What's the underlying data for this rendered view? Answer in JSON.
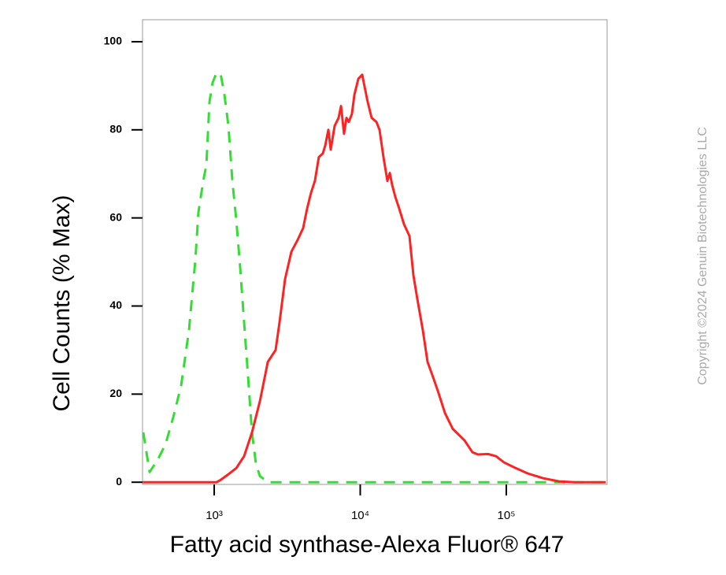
{
  "chart_data": {
    "type": "line",
    "x_label": "Fatty acid synthase-Alexa Fluor® 647",
    "y_label": "Cell Counts (% Max)",
    "watermark": "Copyright ©2024 Genuin Biotechnologies LLC",
    "log_x": true,
    "xlim": [
      323,
      490000
    ],
    "ylim": [
      -0.5,
      105
    ],
    "xticks": [
      {
        "value": 1000,
        "label": "10³"
      },
      {
        "value": 10000,
        "label": "10⁴"
      },
      {
        "value": 100000,
        "label": "10⁵"
      }
    ],
    "yticks": [
      0,
      20,
      40,
      60,
      80,
      100
    ],
    "series": [
      {
        "color": "#33dd33",
        "dashed": true,
        "x": [
          327,
          361,
          409,
          464,
          525,
          594,
          672,
          743,
          780,
          841,
          884,
          928,
          975,
          1025,
          1104,
          1175,
          1251,
          1331,
          1416,
          1506,
          1602,
          1706,
          1815,
          1932,
          2056,
          2328,
          2633,
          480000
        ],
        "values": [
          11.3,
          2.3,
          5,
          8.6,
          14.8,
          22,
          34.5,
          50.5,
          61.3,
          68.4,
          72,
          86.3,
          90.7,
          92.5,
          92.9,
          88,
          80.9,
          68.4,
          59.5,
          48.8,
          36.3,
          23.8,
          11.3,
          4.1,
          1.4,
          0,
          0,
          0
        ]
      },
      {
        "color": "#ff2222",
        "dashed": false,
        "x": [
          325,
          1038,
          1104,
          1251,
          1416,
          1602,
          1815,
          2056,
          2328,
          2633,
          2800,
          3055,
          3373,
          3725,
          4064,
          4324,
          4600,
          4894,
          5207,
          5540,
          5752,
          6050,
          6280,
          6683,
          7110,
          7382,
          7745,
          8050,
          8354,
          8770,
          9120,
          9700,
          10310,
          10710,
          11250,
          11970,
          12900,
          13560,
          14430,
          15350,
          15930,
          16530,
          17380,
          18490,
          19910,
          21730,
          23120,
          24600,
          26840,
          28910,
          31550,
          34390,
          38020,
          42990,
          51760,
          58620,
          63970,
          75160,
          85110,
          96380,
          116100,
          139900,
          179200,
          229600,
          294100,
          480000
        ],
        "values": [
          0,
          0,
          0.5,
          1.8,
          3.2,
          5.9,
          11.3,
          18.4,
          27.3,
          30,
          36.3,
          46.1,
          52.3,
          55,
          57.7,
          62.1,
          65.7,
          68.4,
          73.8,
          74.6,
          76.4,
          80,
          75.5,
          80.9,
          82.7,
          85.4,
          79.1,
          82.7,
          81.8,
          83.6,
          88,
          91.6,
          92.5,
          89.8,
          86.3,
          82.7,
          81.8,
          80,
          73.8,
          68.4,
          70.2,
          67.5,
          64.8,
          62.1,
          58.6,
          55.9,
          47,
          41.6,
          34.5,
          27.3,
          23.8,
          20.2,
          15.7,
          12.1,
          9.5,
          6.8,
          6.3,
          6.4,
          5.9,
          4.5,
          3.2,
          2,
          0.9,
          0.2,
          0,
          0
        ]
      }
    ]
  }
}
